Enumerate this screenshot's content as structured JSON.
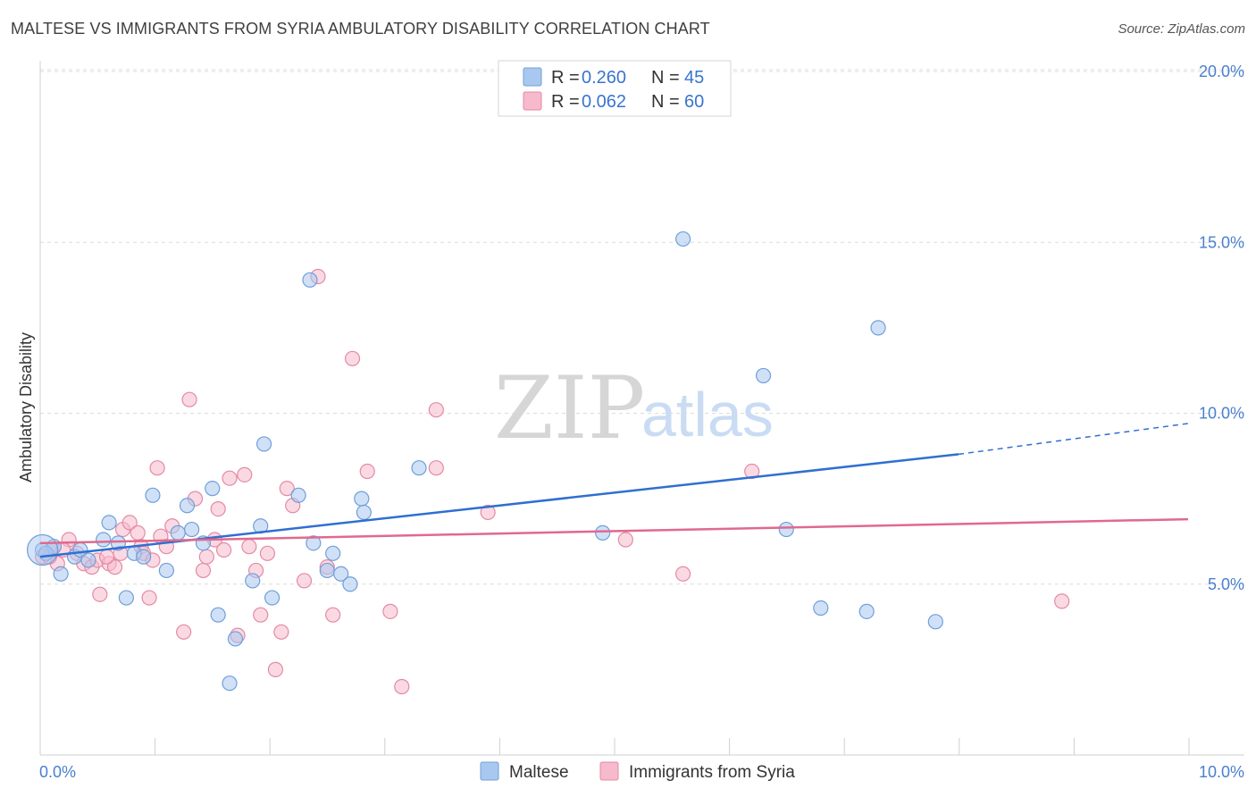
{
  "title": "MALTESE VS IMMIGRANTS FROM SYRIA AMBULATORY DISABILITY CORRELATION CHART",
  "source": "Source: ZipAtlas.com",
  "watermark": {
    "zip": "ZIP",
    "atlas": "atlas"
  },
  "legend_box": {
    "rows": [
      {
        "r_label": "R = ",
        "r_value": "0.260",
        "n_label": "N = ",
        "n_value": "45",
        "color": "#a9c8f0",
        "stroke": "#6f9fd8"
      },
      {
        "r_label": "R = ",
        "r_value": "0.062",
        "n_label": "N = ",
        "n_value": "60",
        "color": "#f7b9cc",
        "stroke": "#e38aa6"
      }
    ]
  },
  "bottom_legend": [
    {
      "label": "Maltese",
      "color": "#a9c8f0",
      "stroke": "#6f9fd8"
    },
    {
      "label": "Immigrants from Syria",
      "color": "#f7b9cc",
      "stroke": "#e38aa6"
    }
  ],
  "chart_data": {
    "type": "scatter",
    "xlabel": "",
    "ylabel": "Ambulatory Disability",
    "xlim": [
      0,
      10
    ],
    "ylim": [
      0,
      20.5
    ],
    "x_tick_labels": [
      {
        "value": 0,
        "label": "0.0%"
      },
      {
        "value": 10,
        "label": "10.0%"
      }
    ],
    "y_ticks": [
      {
        "value": 5,
        "label": "5.0%"
      },
      {
        "value": 10,
        "label": "10.0%"
      },
      {
        "value": 15,
        "label": "15.0%"
      },
      {
        "value": 20,
        "label": "20.0%"
      }
    ],
    "grid": true,
    "series": [
      {
        "name": "Maltese",
        "color": "#a9c8f0",
        "stroke": "#6f9fd8",
        "trend_color": "#2f6fd0",
        "trend": {
          "x0": 0,
          "y0": 5.8,
          "x1": 8.0,
          "y1": 8.8,
          "dash_x1": 10.0,
          "dash_y1": 9.7
        },
        "points": [
          [
            0.02,
            6.0
          ],
          [
            0.12,
            6.1
          ],
          [
            0.18,
            5.3
          ],
          [
            0.3,
            5.8
          ],
          [
            0.35,
            6.0
          ],
          [
            0.42,
            5.7
          ],
          [
            0.55,
            6.3
          ],
          [
            0.6,
            6.8
          ],
          [
            0.68,
            6.2
          ],
          [
            0.75,
            4.6
          ],
          [
            0.82,
            5.9
          ],
          [
            0.9,
            5.8
          ],
          [
            0.98,
            7.6
          ],
          [
            1.1,
            5.4
          ],
          [
            1.2,
            6.5
          ],
          [
            1.28,
            7.3
          ],
          [
            1.32,
            6.6
          ],
          [
            1.42,
            6.2
          ],
          [
            1.5,
            7.8
          ],
          [
            1.55,
            4.1
          ],
          [
            1.65,
            2.1
          ],
          [
            1.7,
            3.4
          ],
          [
            1.85,
            5.1
          ],
          [
            1.92,
            6.7
          ],
          [
            1.95,
            9.1
          ],
          [
            2.02,
            4.6
          ],
          [
            2.25,
            7.6
          ],
          [
            2.35,
            13.9
          ],
          [
            2.38,
            6.2
          ],
          [
            2.5,
            5.4
          ],
          [
            2.55,
            5.9
          ],
          [
            2.62,
            5.3
          ],
          [
            2.7,
            5.0
          ],
          [
            2.8,
            7.5
          ],
          [
            2.82,
            7.1
          ],
          [
            3.3,
            8.4
          ],
          [
            4.9,
            6.5
          ],
          [
            5.6,
            15.1
          ],
          [
            6.3,
            11.1
          ],
          [
            6.5,
            6.6
          ],
          [
            6.8,
            4.3
          ],
          [
            7.2,
            4.2
          ],
          [
            7.3,
            12.5
          ],
          [
            7.8,
            3.9
          ],
          [
            0.05,
            5.9
          ]
        ]
      },
      {
        "name": "Immigrants from Syria",
        "color": "#f7b9cc",
        "stroke": "#e38aa6",
        "trend_color": "#e0698f",
        "trend": {
          "x0": 0,
          "y0": 6.2,
          "x1": 10.0,
          "y1": 6.9
        },
        "points": [
          [
            0.02,
            5.8
          ],
          [
            0.1,
            6.0
          ],
          [
            0.15,
            5.6
          ],
          [
            0.25,
            6.3
          ],
          [
            0.32,
            5.9
          ],
          [
            0.38,
            5.6
          ],
          [
            0.45,
            5.5
          ],
          [
            0.5,
            5.7
          ],
          [
            0.52,
            4.7
          ],
          [
            0.6,
            5.6
          ],
          [
            0.65,
            5.5
          ],
          [
            0.7,
            5.9
          ],
          [
            0.72,
            6.6
          ],
          [
            0.78,
            6.8
          ],
          [
            0.85,
            6.5
          ],
          [
            0.88,
            6.1
          ],
          [
            0.9,
            5.9
          ],
          [
            0.95,
            4.6
          ],
          [
            1.02,
            8.4
          ],
          [
            1.05,
            6.4
          ],
          [
            1.1,
            6.1
          ],
          [
            1.15,
            6.7
          ],
          [
            1.25,
            3.6
          ],
          [
            1.3,
            10.4
          ],
          [
            1.35,
            7.5
          ],
          [
            1.42,
            5.4
          ],
          [
            1.45,
            5.8
          ],
          [
            1.52,
            6.3
          ],
          [
            1.55,
            7.2
          ],
          [
            1.6,
            6.0
          ],
          [
            1.65,
            8.1
          ],
          [
            1.72,
            3.5
          ],
          [
            1.78,
            8.2
          ],
          [
            1.82,
            6.1
          ],
          [
            1.88,
            5.4
          ],
          [
            1.92,
            4.1
          ],
          [
            1.98,
            5.9
          ],
          [
            2.05,
            2.5
          ],
          [
            2.1,
            3.6
          ],
          [
            2.15,
            7.8
          ],
          [
            2.2,
            7.3
          ],
          [
            2.3,
            5.1
          ],
          [
            2.42,
            14.0
          ],
          [
            2.5,
            5.5
          ],
          [
            2.55,
            4.1
          ],
          [
            2.72,
            11.6
          ],
          [
            2.85,
            8.3
          ],
          [
            3.05,
            4.2
          ],
          [
            3.15,
            2.0
          ],
          [
            3.45,
            10.1
          ],
          [
            3.45,
            8.4
          ],
          [
            3.9,
            7.1
          ],
          [
            5.1,
            6.3
          ],
          [
            5.6,
            5.3
          ],
          [
            6.2,
            8.3
          ],
          [
            8.9,
            4.5
          ],
          [
            0.08,
            5.8
          ],
          [
            0.2,
            6.0
          ],
          [
            0.58,
            5.8
          ],
          [
            0.98,
            5.7
          ]
        ]
      }
    ]
  }
}
